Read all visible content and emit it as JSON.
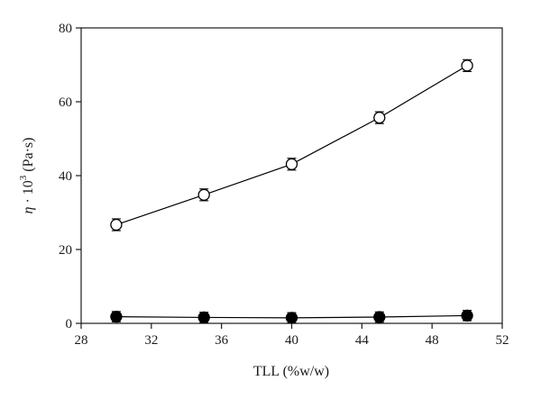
{
  "chart_data": {
    "type": "line",
    "title": "",
    "xlabel": "TLL (%w/w)",
    "ylabel": {
      "symbol": "η",
      "middle": " · 10",
      "exponent": "3",
      "unit": " (Pa·s)"
    },
    "xlim": [
      28,
      52
    ],
    "ylim": [
      0,
      80
    ],
    "xticks": [
      28,
      32,
      36,
      40,
      44,
      48,
      52
    ],
    "yticks": [
      0,
      20,
      40,
      60,
      80
    ],
    "grid": false,
    "legend": "none",
    "series": [
      {
        "marker": "open-circle",
        "color": "#000000",
        "x": [
          30,
          35,
          40,
          45,
          50
        ],
        "y": [
          26.7,
          34.8,
          43.1,
          55.7,
          69.8
        ],
        "error": [
          1.6,
          1.6,
          1.6,
          1.6,
          1.6
        ]
      },
      {
        "marker": "filled-circle",
        "color": "#000000",
        "x": [
          30,
          35,
          40,
          45,
          50
        ],
        "y": [
          1.8,
          1.6,
          1.5,
          1.7,
          2.1
        ],
        "error": [
          1.4,
          1.4,
          1.4,
          1.4,
          1.4
        ]
      }
    ]
  }
}
